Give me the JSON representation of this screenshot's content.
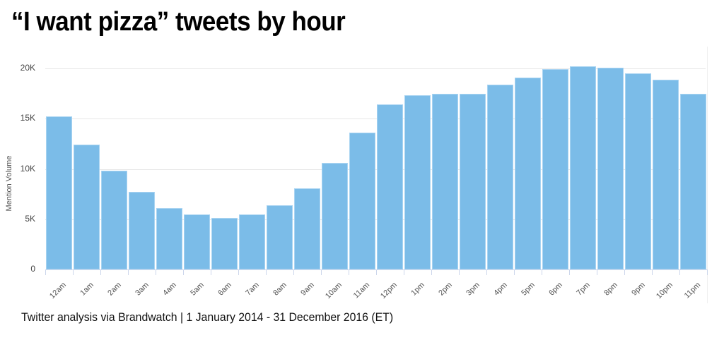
{
  "title": "“I want pizza” tweets by hour",
  "footer": "Twitter analysis via Brandwatch | 1 January 2014 - 31 December 2016 (ET)",
  "colors": {
    "bar": "#7bbce8",
    "bar_border": "#a9d4f2",
    "grid": "#e6e6e6",
    "axis": "#ccd6eb"
  },
  "y_axis": {
    "label": "Mention Volume",
    "ticks": [
      "0",
      "5K",
      "10K",
      "15K",
      "20K"
    ]
  },
  "chart_data": {
    "type": "bar",
    "title": "“I want pizza” tweets by hour",
    "xlabel": "",
    "ylabel": "Mention Volume",
    "ylim": [
      0,
      21000
    ],
    "yticks": [
      0,
      5000,
      10000,
      15000,
      20000
    ],
    "ytick_labels": [
      "0",
      "5K",
      "10K",
      "15K",
      "20K"
    ],
    "grid": true,
    "legend": null,
    "categories": [
      "12am",
      "1am",
      "2am",
      "3am",
      "4am",
      "5am",
      "6am",
      "7am",
      "8am",
      "9am",
      "10am",
      "11am",
      "12pm",
      "1pm",
      "2pm",
      "3pm",
      "4pm",
      "5pm",
      "6pm",
      "7pm",
      "8pm",
      "9pm",
      "10pm",
      "11pm"
    ],
    "values": [
      15200,
      12400,
      9800,
      7700,
      6100,
      5500,
      5100,
      5500,
      6400,
      8100,
      10600,
      13600,
      16400,
      17300,
      17500,
      17500,
      18400,
      19100,
      19900,
      20200,
      20100,
      19500,
      18900,
      17500
    ],
    "source": "Twitter analysis via Brandwatch | 1 January 2014 - 31 December 2016 (ET)"
  }
}
